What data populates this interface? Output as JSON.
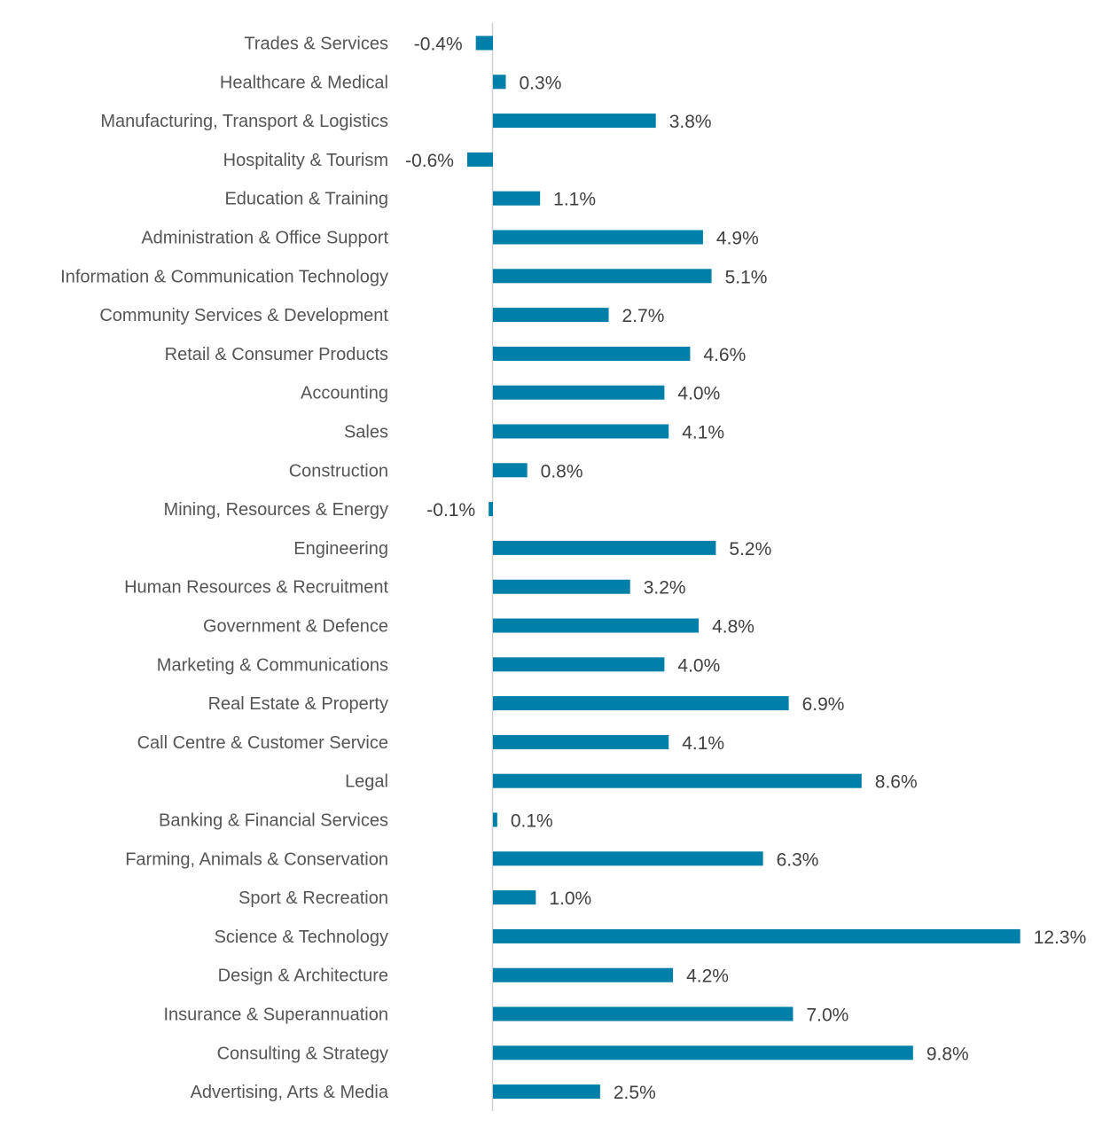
{
  "chart_data": {
    "type": "bar",
    "orientation": "horizontal",
    "title": "",
    "xlabel": "",
    "ylabel": "",
    "grid": false,
    "legend": "none",
    "value_format": "percent_1dp",
    "xlim": [
      -0.6,
      12.3
    ],
    "bar_color": "#0080A8",
    "axis_color": "#D0D0D0",
    "categories": [
      "Trades & Services",
      "Healthcare & Medical",
      "Manufacturing, Transport & Logistics",
      "Hospitality & Tourism",
      "Education & Training",
      "Administration & Office Support",
      "Information & Communication Technology",
      "Community Services & Development",
      "Retail & Consumer Products",
      "Accounting",
      "Sales",
      "Construction",
      "Mining, Resources & Energy",
      "Engineering",
      "Human Resources & Recruitment",
      "Government & Defence",
      "Marketing & Communications",
      "Real Estate & Property",
      "Call Centre & Customer Service",
      "Legal",
      "Banking & Financial Services",
      "Farming, Animals & Conservation",
      "Sport & Recreation",
      "Science & Technology",
      "Design & Architecture",
      "Insurance & Superannuation",
      "Consulting & Strategy",
      "Advertising, Arts & Media"
    ],
    "values": [
      -0.4,
      0.3,
      3.8,
      -0.6,
      1.1,
      4.9,
      5.1,
      2.7,
      4.6,
      4.0,
      4.1,
      0.8,
      -0.1,
      5.2,
      3.2,
      4.8,
      4.0,
      6.9,
      4.1,
      8.6,
      0.1,
      6.3,
      1.0,
      12.3,
      4.2,
      7.0,
      9.8,
      2.5
    ],
    "data_labels": [
      "-0.4%",
      "0.3%",
      "3.8%",
      "-0.6%",
      "1.1%",
      "4.9%",
      "5.1%",
      "2.7%",
      "4.6%",
      "4.0%",
      "4.1%",
      "0.8%",
      "-0.1%",
      "5.2%",
      "3.2%",
      "4.8%",
      "4.0%",
      "6.9%",
      "4.1%",
      "8.6%",
      "0.1%",
      "6.3%",
      "1.0%",
      "12.3%",
      "4.2%",
      "7.0%",
      "9.8%",
      "2.5%"
    ]
  }
}
